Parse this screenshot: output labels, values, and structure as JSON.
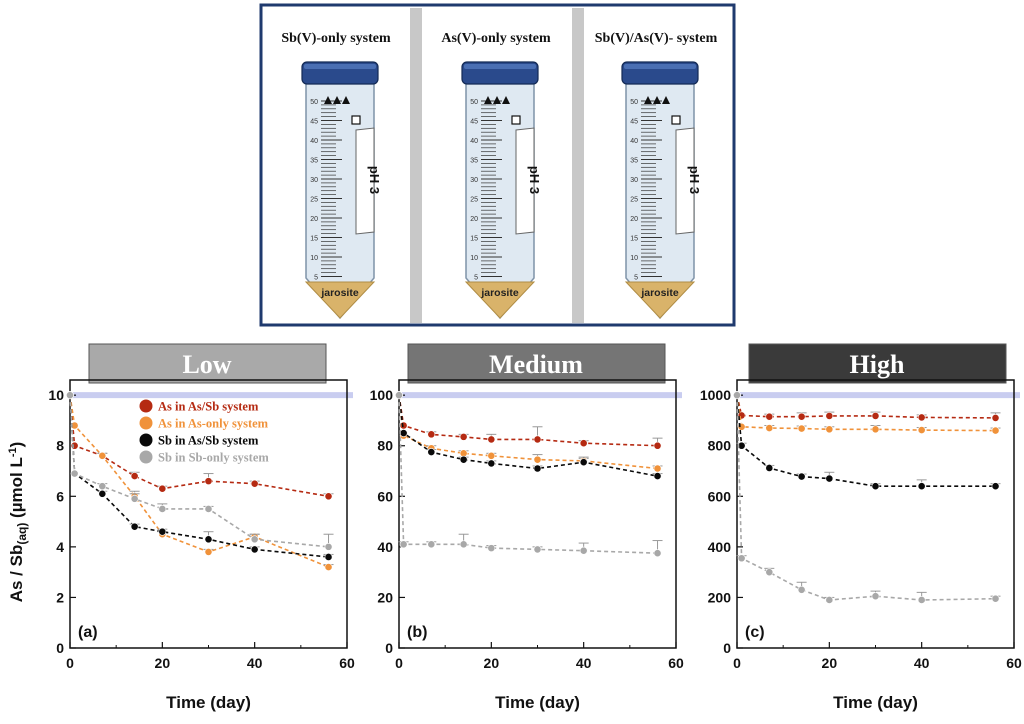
{
  "schematic": {
    "tubes": [
      {
        "title": "Sb(V)-only system",
        "sediment": "jarosite",
        "label": "pH 3",
        "marks": [
          "50",
          "45",
          "40",
          "35",
          "30",
          "25",
          "20",
          "15",
          "10",
          "5"
        ]
      },
      {
        "title": "As(V)-only system",
        "sediment": "jarosite",
        "label": "pH 3",
        "marks": [
          "50",
          "45",
          "40",
          "35",
          "30",
          "25",
          "20",
          "15",
          "10",
          "5"
        ]
      },
      {
        "title": "Sb(V)/As(V)- system",
        "sediment": "jarosite",
        "label": "pH 3",
        "marks": [
          "50",
          "45",
          "40",
          "35",
          "30",
          "25",
          "20",
          "15",
          "10",
          "5"
        ]
      }
    ],
    "colors": {
      "frame": "#1f3a6e",
      "cap": "#2a4a8c",
      "sediment": "#d9b36a",
      "tube": "#dfe9f2"
    }
  },
  "colors": {
    "as_in_as_sb": "#b52a12",
    "as_in_as_only": "#f0923a",
    "sb_in_as_sb": "#0a0a0a",
    "sb_in_sb_only": "#a8a8a8",
    "reference_line": "#c9cdf0"
  },
  "ylabel": "As / Sb(aq) (µmol L⁻¹)",
  "ylabel_parts": {
    "main": "As / Sb",
    "sub": "(aq)",
    "unit_open": " (µmol L",
    "sup": "-1",
    "unit_close": ")"
  },
  "legend": [
    "As in As/Sb system",
    "As in As-only system",
    "Sb in As/Sb system",
    "Sb in Sb-only system"
  ],
  "chart_data": [
    {
      "type": "line",
      "panel": "(a)",
      "title": "Low",
      "title_bg": "#a9a9a9",
      "xlabel": "Time (day)",
      "xlim": [
        0,
        60
      ],
      "ylim": [
        0,
        10.6
      ],
      "xticks": [
        0,
        20,
        40,
        60
      ],
      "yticks": [
        0,
        2,
        4,
        6,
        8,
        10
      ],
      "reference": 10,
      "legend_position": "top-center",
      "series": [
        {
          "name": "As in As/Sb system",
          "x": [
            0,
            1,
            7,
            14,
            20,
            30,
            40,
            56
          ],
          "y": [
            10,
            8.0,
            7.6,
            6.8,
            6.3,
            6.6,
            6.5,
            6.0
          ],
          "err": [
            0,
            0,
            0.1,
            0.15,
            0.1,
            0.3,
            0.1,
            0.1
          ]
        },
        {
          "name": "As in As-only system",
          "x": [
            0,
            1,
            7,
            14,
            20,
            30,
            40,
            56
          ],
          "y": [
            10,
            8.8,
            7.6,
            6.0,
            4.5,
            3.8,
            4.4,
            3.2
          ],
          "err": [
            0,
            0,
            0.1,
            0.2,
            0.1,
            0.1,
            0.1,
            0.1
          ]
        },
        {
          "name": "Sb in As/Sb system",
          "x": [
            0,
            1,
            7,
            14,
            20,
            30,
            40,
            56
          ],
          "y": [
            10,
            6.9,
            6.1,
            4.8,
            4.6,
            4.3,
            3.9,
            3.6
          ],
          "err": [
            0,
            0,
            0.1,
            0.1,
            0.1,
            0.3,
            0.1,
            0.1
          ]
        },
        {
          "name": "Sb in Sb-only system",
          "x": [
            0,
            1,
            7,
            14,
            20,
            30,
            40,
            56
          ],
          "y": [
            10,
            6.9,
            6.4,
            5.9,
            5.5,
            5.5,
            4.3,
            4.0
          ],
          "err": [
            0,
            0,
            0.1,
            0.2,
            0.2,
            0.1,
            0.2,
            0.5
          ]
        }
      ]
    },
    {
      "type": "line",
      "panel": "(b)",
      "title": "Medium",
      "title_bg": "#757575",
      "xlabel": "Time (day)",
      "xlim": [
        0,
        60
      ],
      "ylim": [
        0,
        106
      ],
      "xticks": [
        0,
        20,
        40,
        60
      ],
      "yticks": [
        0,
        20,
        40,
        60,
        80,
        100
      ],
      "reference": 100,
      "series": [
        {
          "name": "As in As/Sb system",
          "x": [
            0,
            1,
            7,
            14,
            20,
            30,
            40,
            56
          ],
          "y": [
            100,
            88,
            84.5,
            83.5,
            82.5,
            82.5,
            81,
            80
          ],
          "err": [
            0,
            0,
            1,
            1,
            2,
            5,
            1,
            3
          ]
        },
        {
          "name": "As in As-only system",
          "x": [
            0,
            1,
            7,
            14,
            20,
            30,
            40,
            56
          ],
          "y": [
            100,
            84,
            79,
            77,
            76,
            74.5,
            74,
            71
          ],
          "err": [
            0,
            0,
            1,
            1,
            1,
            2,
            1,
            1
          ]
        },
        {
          "name": "Sb in As/Sb system",
          "x": [
            0,
            1,
            7,
            14,
            20,
            30,
            40,
            56
          ],
          "y": [
            100,
            85,
            77.5,
            74.5,
            73,
            71,
            73.5,
            68
          ],
          "err": [
            0,
            0,
            1,
            1,
            1,
            1,
            2,
            1
          ]
        },
        {
          "name": "Sb in Sb-only system",
          "x": [
            0,
            1,
            7,
            14,
            20,
            30,
            40,
            56
          ],
          "y": [
            100,
            41,
            41,
            41,
            39.5,
            39,
            38.5,
            37.5
          ],
          "err": [
            0,
            1,
            1,
            4,
            1,
            1,
            3,
            5
          ]
        }
      ]
    },
    {
      "type": "line",
      "panel": "(c)",
      "title": "High",
      "title_bg": "#3a3a3a",
      "xlabel": "Time (day)",
      "xlim": [
        0,
        60
      ],
      "ylim": [
        0,
        1060
      ],
      "xticks": [
        0,
        20,
        40,
        60
      ],
      "yticks": [
        0,
        200,
        400,
        600,
        800,
        1000
      ],
      "reference": 1000,
      "series": [
        {
          "name": "As in As/Sb system",
          "x": [
            0,
            1,
            7,
            14,
            20,
            30,
            40,
            56
          ],
          "y": [
            1000,
            920,
            915,
            915,
            918,
            918,
            912,
            910
          ],
          "err": [
            0,
            0,
            10,
            15,
            15,
            15,
            10,
            20
          ]
        },
        {
          "name": "As in As-only system",
          "x": [
            0,
            1,
            7,
            14,
            20,
            30,
            40,
            56
          ],
          "y": [
            1000,
            875,
            870,
            868,
            865,
            865,
            862,
            860
          ],
          "err": [
            0,
            0,
            10,
            10,
            10,
            15,
            10,
            10
          ]
        },
        {
          "name": "Sb in As/Sb system",
          "x": [
            0,
            1,
            7,
            14,
            20,
            30,
            40,
            56
          ],
          "y": [
            1000,
            800,
            712,
            678,
            670,
            640,
            640,
            640
          ],
          "err": [
            0,
            10,
            10,
            10,
            25,
            10,
            25,
            10
          ]
        },
        {
          "name": "Sb in Sb-only system",
          "x": [
            0,
            1,
            7,
            14,
            20,
            30,
            40,
            56
          ],
          "y": [
            1000,
            355,
            300,
            230,
            190,
            205,
            190,
            195
          ],
          "err": [
            0,
            10,
            15,
            30,
            10,
            20,
            30,
            10
          ]
        }
      ]
    }
  ]
}
